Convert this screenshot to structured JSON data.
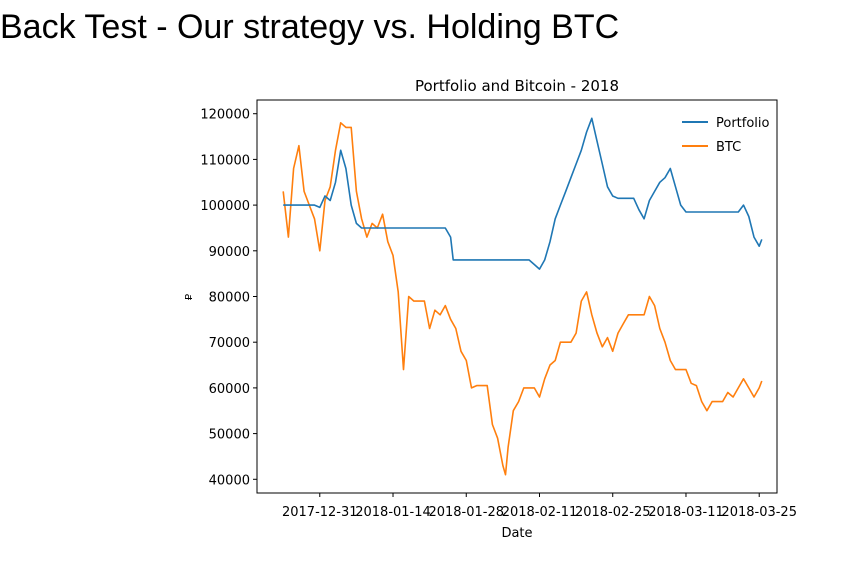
{
  "slide": {
    "title": "Back Test - Our strategy vs. Holding BTC"
  },
  "chart_data": {
    "type": "line",
    "title": "Portfolio and Bitcoin - 2018",
    "xlabel": "Date",
    "ylabel": "₽",
    "x_ticks": [
      "2017-12-31",
      "2018-01-14",
      "2018-01-28",
      "2018-02-11",
      "2018-02-25",
      "2018-03-11",
      "2018-03-25"
    ],
    "x_tick_days": [
      0,
      14,
      28,
      42,
      56,
      70,
      84
    ],
    "xlim": [
      -12,
      87.4
    ],
    "ylim": [
      37000,
      123000
    ],
    "y_ticks": [
      40000,
      50000,
      60000,
      70000,
      80000,
      90000,
      100000,
      110000,
      120000
    ],
    "legend": {
      "position": "top-right"
    },
    "series": [
      {
        "name": "Portfolio",
        "color": "#1f77b4",
        "points": [
          [
            -7,
            100000
          ],
          [
            -1,
            100000
          ],
          [
            0,
            99500
          ],
          [
            1,
            102000
          ],
          [
            2,
            101000
          ],
          [
            3,
            105000
          ],
          [
            4,
            112000
          ],
          [
            5,
            108000
          ],
          [
            6,
            100000
          ],
          [
            7,
            96000
          ],
          [
            8,
            95000
          ],
          [
            10,
            95000
          ],
          [
            12,
            95000
          ],
          [
            14,
            95000
          ],
          [
            16,
            95000
          ],
          [
            18,
            95000
          ],
          [
            20,
            95000
          ],
          [
            22,
            95000
          ],
          [
            24,
            95000
          ],
          [
            25,
            93000
          ],
          [
            25.5,
            88000
          ],
          [
            27,
            88000
          ],
          [
            30,
            88000
          ],
          [
            33,
            88000
          ],
          [
            36,
            88000
          ],
          [
            38,
            88000
          ],
          [
            40,
            88000
          ],
          [
            41,
            87000
          ],
          [
            42,
            86000
          ],
          [
            43,
            88000
          ],
          [
            44,
            92000
          ],
          [
            45,
            97000
          ],
          [
            46,
            100000
          ],
          [
            47,
            103000
          ],
          [
            48,
            106000
          ],
          [
            49,
            109000
          ],
          [
            50,
            112000
          ],
          [
            51,
            116000
          ],
          [
            52,
            119000
          ],
          [
            53,
            114000
          ],
          [
            54,
            109000
          ],
          [
            55,
            104000
          ],
          [
            56,
            102000
          ],
          [
            57,
            101500
          ],
          [
            59,
            101500
          ],
          [
            60,
            101500
          ],
          [
            61,
            99000
          ],
          [
            62,
            97000
          ],
          [
            63,
            101000
          ],
          [
            64,
            103000
          ],
          [
            65,
            105000
          ],
          [
            66,
            106000
          ],
          [
            67,
            108000
          ],
          [
            68,
            104000
          ],
          [
            69,
            100000
          ],
          [
            70,
            98500
          ],
          [
            72,
            98500
          ],
          [
            74,
            98500
          ],
          [
            76,
            98500
          ],
          [
            78,
            98500
          ],
          [
            80,
            98500
          ],
          [
            81,
            100000
          ],
          [
            82,
            97500
          ],
          [
            83,
            93000
          ],
          [
            84,
            91000
          ],
          [
            84.5,
            92500
          ]
        ]
      },
      {
        "name": "BTC",
        "color": "#ff7f0e",
        "points": [
          [
            -7,
            103000
          ],
          [
            -6,
            93000
          ],
          [
            -5,
            108000
          ],
          [
            -4,
            113000
          ],
          [
            -3,
            103000
          ],
          [
            -2,
            100000
          ],
          [
            -1,
            97000
          ],
          [
            0,
            90000
          ],
          [
            1,
            101000
          ],
          [
            2,
            104000
          ],
          [
            3,
            112000
          ],
          [
            4,
            118000
          ],
          [
            5,
            117000
          ],
          [
            6,
            117000
          ],
          [
            7,
            103000
          ],
          [
            8,
            97000
          ],
          [
            9,
            93000
          ],
          [
            10,
            96000
          ],
          [
            11,
            95000
          ],
          [
            12,
            98000
          ],
          [
            13,
            92000
          ],
          [
            14,
            89000
          ],
          [
            15,
            81000
          ],
          [
            16,
            64000
          ],
          [
            17,
            80000
          ],
          [
            18,
            79000
          ],
          [
            20,
            79000
          ],
          [
            21,
            73000
          ],
          [
            22,
            77000
          ],
          [
            23,
            76000
          ],
          [
            24,
            78000
          ],
          [
            25,
            75000
          ],
          [
            26,
            73000
          ],
          [
            27,
            68000
          ],
          [
            28,
            66000
          ],
          [
            29,
            60000
          ],
          [
            30,
            60500
          ],
          [
            32,
            60500
          ],
          [
            33,
            52000
          ],
          [
            34,
            49000
          ],
          [
            35,
            43000
          ],
          [
            35.5,
            41000
          ],
          [
            36,
            47000
          ],
          [
            37,
            55000
          ],
          [
            38,
            57000
          ],
          [
            39,
            60000
          ],
          [
            41,
            60000
          ],
          [
            42,
            58000
          ],
          [
            43,
            62000
          ],
          [
            44,
            65000
          ],
          [
            45,
            66000
          ],
          [
            46,
            70000
          ],
          [
            48,
            70000
          ],
          [
            49,
            72000
          ],
          [
            50,
            79000
          ],
          [
            51,
            81000
          ],
          [
            52,
            76000
          ],
          [
            53,
            72000
          ],
          [
            54,
            69000
          ],
          [
            55,
            71000
          ],
          [
            56,
            68000
          ],
          [
            57,
            72000
          ],
          [
            58,
            74000
          ],
          [
            59,
            76000
          ],
          [
            60,
            76000
          ],
          [
            62,
            76000
          ],
          [
            63,
            80000
          ],
          [
            64,
            78000
          ],
          [
            65,
            73000
          ],
          [
            66,
            70000
          ],
          [
            67,
            66000
          ],
          [
            68,
            64000
          ],
          [
            70,
            64000
          ],
          [
            71,
            61000
          ],
          [
            72,
            60500
          ],
          [
            73,
            57000
          ],
          [
            74,
            55000
          ],
          [
            75,
            57000
          ],
          [
            77,
            57000
          ],
          [
            78,
            59000
          ],
          [
            79,
            58000
          ],
          [
            80,
            60000
          ],
          [
            81,
            62000
          ],
          [
            82,
            60000
          ],
          [
            83,
            58000
          ],
          [
            84,
            60000
          ],
          [
            84.5,
            61500
          ]
        ]
      }
    ]
  }
}
